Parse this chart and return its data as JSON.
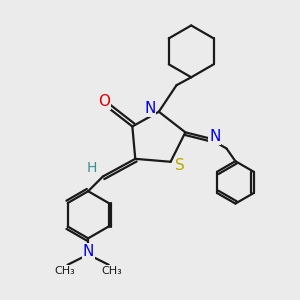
{
  "bg_color": "#ebebeb",
  "bond_color": "#1a1a1a",
  "N_color": "#0000ee",
  "O_color": "#dd0000",
  "S_color": "#bbaa00",
  "H_color": "#3a9090",
  "line_width": 1.6,
  "fig_size": [
    3.0,
    3.0
  ],
  "dpi": 100,
  "xlim": [
    0,
    10
  ],
  "ylim": [
    0,
    10
  ]
}
